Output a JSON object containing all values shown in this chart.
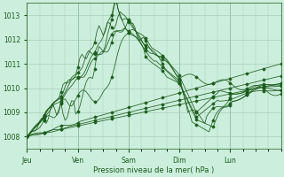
{
  "xlabel": "Pression niveau de la mer( hPa )",
  "ylim": [
    1007.5,
    1013.5
  ],
  "yticks": [
    1008,
    1009,
    1010,
    1011,
    1012,
    1013
  ],
  "day_labels": [
    "Jeu",
    "Ven",
    "Sam",
    "Dim",
    "Lun"
  ],
  "day_positions": [
    0,
    24,
    48,
    72,
    96
  ],
  "total_hours": 120,
  "bg_color": "#cceedd",
  "grid_color": "#aaccbb",
  "line_color": "#1a5c1a",
  "marker_color": "#1a5c1a",
  "n_hours": 121
}
